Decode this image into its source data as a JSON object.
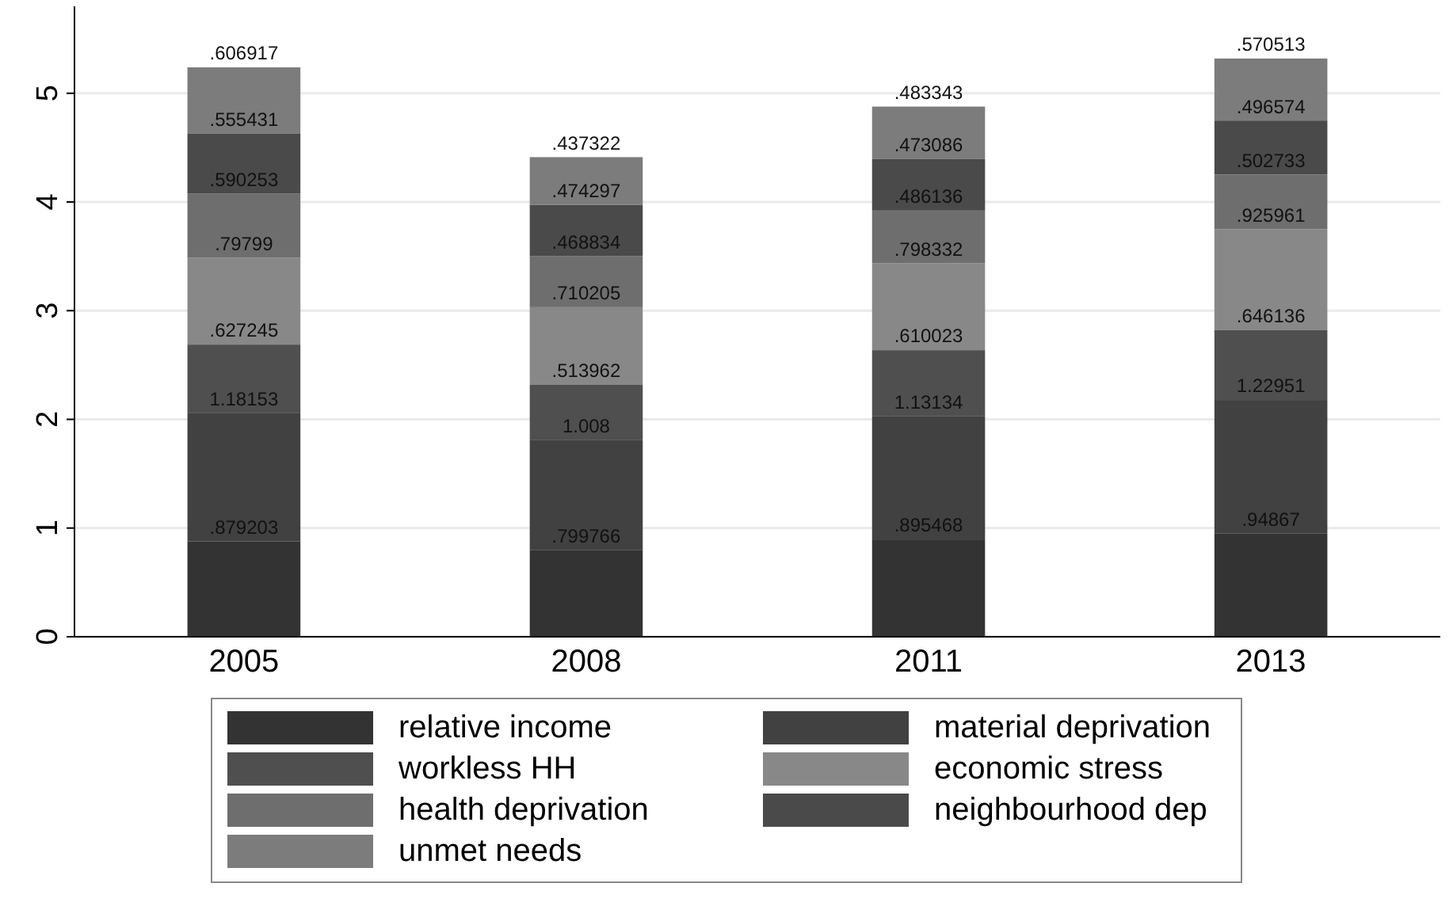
{
  "chart_data": {
    "type": "bar",
    "stacked": true,
    "categories": [
      "2005",
      "2008",
      "2011",
      "2013"
    ],
    "series": [
      {
        "name": "relative income",
        "color": "#333333",
        "values": [
          0.879203,
          0.799766,
          0.895468,
          0.94867
        ],
        "value_labels": [
          ".879203",
          ".799766",
          ".895468",
          ".94867"
        ]
      },
      {
        "name": "material deprivation",
        "color": "#414141",
        "values": [
          1.18153,
          1.008,
          1.13134,
          1.22951
        ],
        "value_labels": [
          "1.18153",
          "1.008",
          "1.13134",
          "1.22951"
        ]
      },
      {
        "name": "workless HH",
        "color": "#4f4f4f",
        "values": [
          0.627245,
          0.513962,
          0.610023,
          0.646136
        ],
        "value_labels": [
          ".627245",
          ".513962",
          ".610023",
          ".646136"
        ]
      },
      {
        "name": "economic stress",
        "color": "#888888",
        "values": [
          0.79799,
          0.710205,
          0.798332,
          0.925961
        ],
        "value_labels": [
          ".79799",
          ".710205",
          ".798332",
          ".925961"
        ]
      },
      {
        "name": "health deprivation",
        "color": "#6e6e6e",
        "values": [
          0.590253,
          0.468834,
          0.486136,
          0.502733
        ],
        "value_labels": [
          ".590253",
          ".468834",
          ".486136",
          ".502733"
        ]
      },
      {
        "name": "neighbourhood dep",
        "color": "#4a4a4a",
        "values": [
          0.555431,
          0.474297,
          0.473086,
          0.496574
        ],
        "value_labels": [
          ".555431",
          ".474297",
          ".473086",
          ".496574"
        ]
      },
      {
        "name": "unmet needs",
        "color": "#7c7c7c",
        "values": [
          0.606917,
          0.437322,
          0.483343,
          0.570513
        ],
        "value_labels": [
          ".606917",
          ".437322",
          ".483343",
          ".570513"
        ]
      }
    ],
    "ylim": [
      0,
      5.8
    ],
    "yticks": [
      0,
      1,
      2,
      3,
      4,
      5
    ],
    "grid": "y",
    "legend": "bottom"
  }
}
